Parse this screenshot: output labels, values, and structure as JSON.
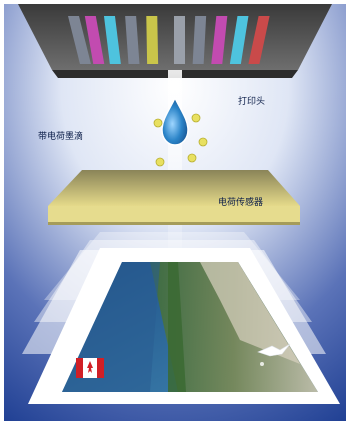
{
  "labels": {
    "print_head": "打印头",
    "charged_ink_drop": "带电荷墨滴",
    "charge_sensor": "电荷传感器"
  },
  "colors": {
    "background_top": "#ffffff",
    "background_bottom": "#1f3f93",
    "head_body": "#5a5a5a",
    "sensor_plate": "#d9cd7e",
    "ink_drop": "#2b84c8",
    "charge_dots": "#e8e060",
    "nozzle_colors": [
      "#7d8594",
      "#c24bb0",
      "#4ec3de",
      "#7d8594",
      "#c9c54a",
      "#9aa0aa",
      "#7d8594",
      "#c24bb0",
      "#4ec3de",
      "#c94a4a"
    ]
  },
  "icons": [
    "ink-drop-icon",
    "canada-flag-icon",
    "bird-icon"
  ]
}
